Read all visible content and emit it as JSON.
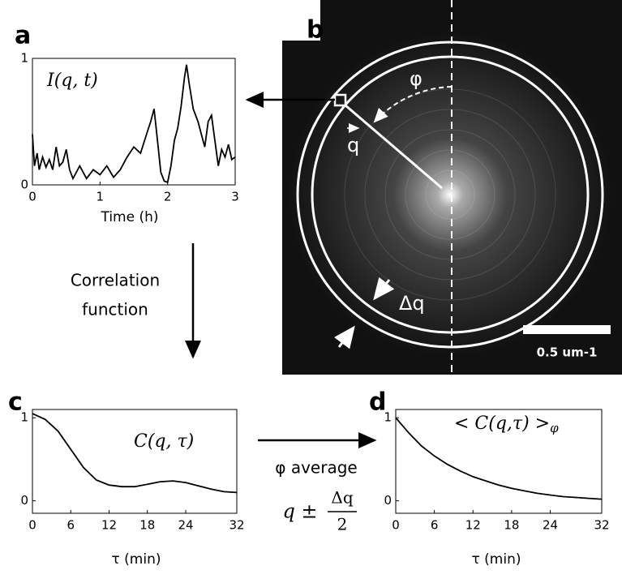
{
  "chart_data": [
    {
      "type": "line",
      "label": "a",
      "title": "I(q, t)",
      "xlabel": "Time (h)",
      "x": [
        0,
        0.03,
        0.07,
        0.1,
        0.15,
        0.2,
        0.25,
        0.3,
        0.35,
        0.4,
        0.45,
        0.5,
        0.55,
        0.6,
        0.7,
        0.8,
        0.9,
        1.0,
        1.1,
        1.2,
        1.3,
        1.4,
        1.5,
        1.6,
        1.7,
        1.75,
        1.8,
        1.85,
        1.9,
        1.95,
        2.0,
        2.05,
        2.1,
        2.15,
        2.2,
        2.25,
        2.28,
        2.32,
        2.38,
        2.45,
        2.5,
        2.55,
        2.6,
        2.65,
        2.7,
        2.75,
        2.8,
        2.85,
        2.9,
        2.95,
        3.0
      ],
      "series": [
        {
          "color": "#000000",
          "values": [
            0.4,
            0.15,
            0.25,
            0.12,
            0.22,
            0.14,
            0.2,
            0.12,
            0.3,
            0.15,
            0.18,
            0.28,
            0.12,
            0.05,
            0.15,
            0.05,
            0.12,
            0.08,
            0.15,
            0.06,
            0.12,
            0.22,
            0.3,
            0.25,
            0.42,
            0.5,
            0.6,
            0.35,
            0.1,
            0.03,
            0.02,
            0.15,
            0.35,
            0.45,
            0.62,
            0.85,
            0.95,
            0.8,
            0.6,
            0.5,
            0.4,
            0.3,
            0.5,
            0.55,
            0.35,
            0.15,
            0.28,
            0.22,
            0.32,
            0.2,
            0.22
          ]
        }
      ],
      "xlim": [
        0,
        3
      ],
      "ylim": [
        0,
        1
      ],
      "xticks": [
        0,
        1,
        2,
        3
      ],
      "yticks": [
        0,
        1
      ]
    },
    {
      "type": "line",
      "label": "c",
      "title": "C(q, τ)",
      "xlabel": "τ  (min)",
      "x": [
        0,
        2,
        4,
        6,
        8,
        10,
        12,
        14,
        16,
        18,
        20,
        22,
        24,
        26,
        28,
        30,
        32
      ],
      "series": [
        {
          "color": "#000000",
          "values": [
            1.05,
            0.98,
            0.84,
            0.62,
            0.4,
            0.25,
            0.19,
            0.17,
            0.17,
            0.2,
            0.23,
            0.24,
            0.22,
            0.18,
            0.14,
            0.11,
            0.1
          ]
        }
      ],
      "xlim": [
        0,
        32
      ],
      "ylim": [
        -0.15,
        1.1
      ],
      "xticks": [
        0,
        6,
        12,
        18,
        24,
        32
      ],
      "yticks": [
        0,
        1
      ]
    },
    {
      "type": "line",
      "label": "d",
      "title": "< C(q,τ) >",
      "title_subscript": "φ",
      "xlabel": "τ (min)",
      "x": [
        0,
        2,
        4,
        6,
        8,
        10,
        12,
        14,
        16,
        18,
        20,
        22,
        24,
        26,
        28,
        30,
        32
      ],
      "series": [
        {
          "color": "#000000",
          "values": [
            1.0,
            0.82,
            0.66,
            0.54,
            0.44,
            0.36,
            0.29,
            0.24,
            0.19,
            0.15,
            0.12,
            0.09,
            0.07,
            0.05,
            0.04,
            0.03,
            0.02
          ]
        }
      ],
      "xlim": [
        0,
        32
      ],
      "ylim": [
        -0.15,
        1.1
      ],
      "xticks": [
        0,
        6,
        12,
        18,
        24,
        32
      ],
      "yticks": [
        0,
        1
      ]
    }
  ],
  "figure": {
    "panel_b": {
      "label": "b",
      "angle": "φ",
      "vector": "q",
      "width": "Δq",
      "scale": "0.5 um-1"
    },
    "step_1": [
      "Correlation",
      "function"
    ],
    "step_2": {
      "text": "φ average",
      "expr": "q ±",
      "numerator": "Δq",
      "denominator": "2"
    }
  }
}
